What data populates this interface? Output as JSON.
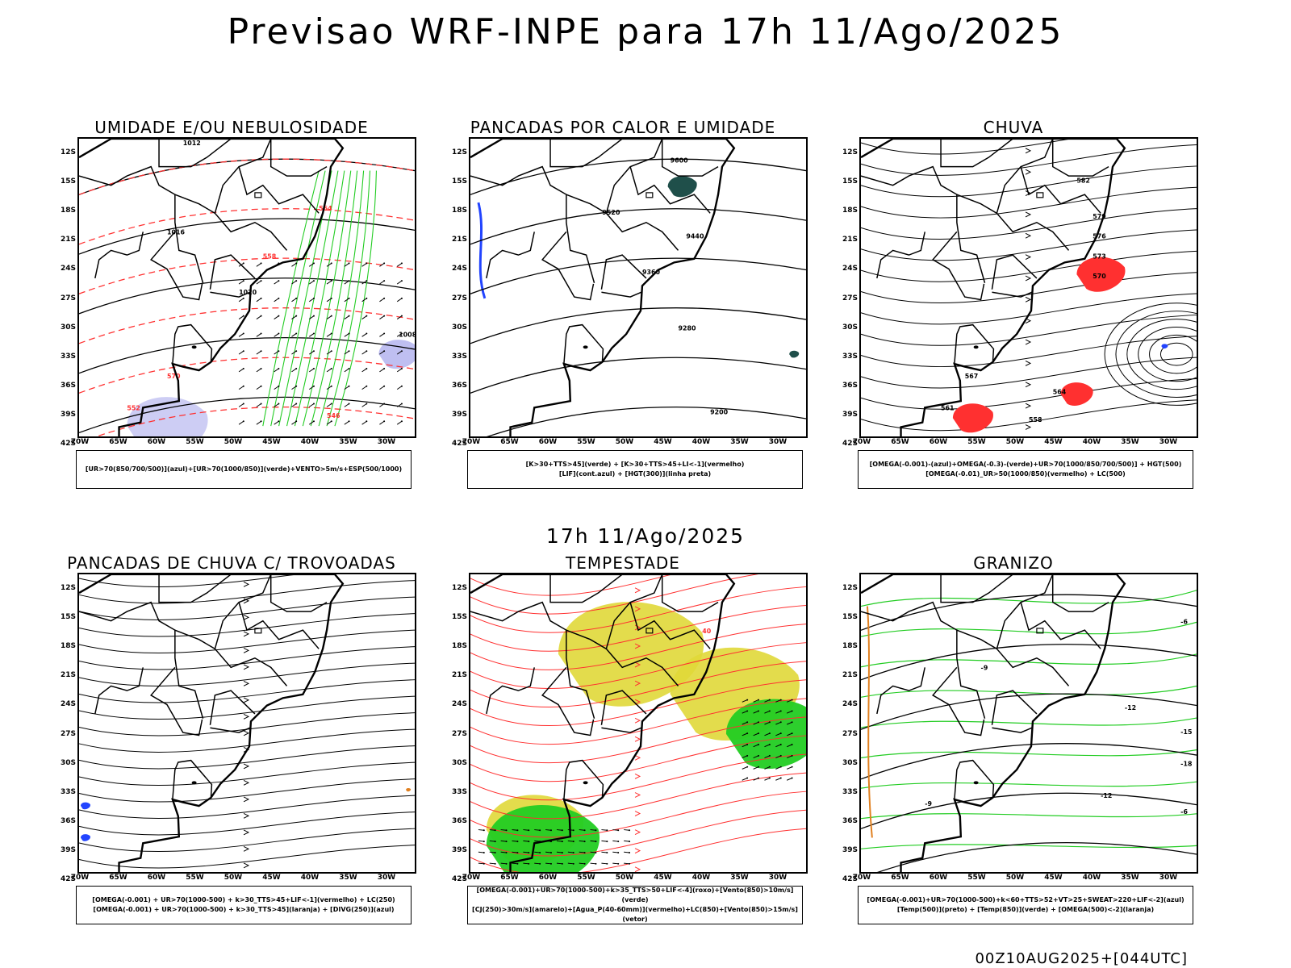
{
  "main_title": "Previsao WRF-INPE  para 17h 11/Ago/2025",
  "mid_title": "17h 11/Ago/2025",
  "footer": "00Z10AUG2025+[044UTC]",
  "axes": {
    "lat_labels": [
      "12S",
      "15S",
      "18S",
      "21S",
      "24S",
      "27S",
      "30S",
      "33S",
      "36S",
      "39S",
      "42S"
    ],
    "lon_labels": [
      "70W",
      "65W",
      "60W",
      "55W",
      "50W",
      "45W",
      "40W",
      "35W",
      "30W"
    ]
  },
  "panels": [
    {
      "title": "UMIDADE E/OU NEBULOSIDADE",
      "legend": [
        "[UR>70(850/700/500)](azul)+[UR>70(1000/850)](verde)+VENTO>5m/s+ESP(500/1000)"
      ],
      "contour_labels": [
        "1012",
        "1016",
        "1020",
        "1008",
        "570",
        "564",
        "558",
        "552",
        "546"
      ]
    },
    {
      "title": "PANCADAS POR CALOR E UMIDADE",
      "legend": [
        "[K>30+TTS>45](verde) + [K>30+TTS>45+LI<-1](vermelho)",
        "[LIF](cont.azul) + [HGT(300)](linha preta)"
      ],
      "contour_labels": [
        "9600",
        "9520",
        "9440",
        "9360",
        "9280",
        "9200"
      ]
    },
    {
      "title": "CHUVA",
      "legend": [
        "[OMEGA(-0.001)-(azul)+OMEGA(-0.3)-(verde)+UR>70(1000/850/700/500)] + HGT(500)",
        "[OMEGA(-0.01)_UR>50(1000/850)(vermelho) + LC(500)"
      ],
      "contour_labels": [
        "582",
        "579",
        "576",
        "573",
        "570",
        "567",
        "564",
        "561",
        "558"
      ]
    },
    {
      "title": "PANCADAS DE CHUVA C/ TROVOADAS",
      "legend": [
        "[OMEGA(-0.001) + UR>70(1000-500) + k>30_TTS>45+LIF<-1](vermelho) + LC(250)",
        "[OMEGA(-0.001) + UR>70(1000-500) + k>30_TTS>45](laranja) + [DIVG(250)](azul)"
      ],
      "contour_labels": []
    },
    {
      "title": "TEMPESTADE",
      "legend": [
        "[OMEGA(-0.001)+UR>70(1000-500)+k>35_TTS>50+LIF<-4](roxo)+[Vento(850)>10m/s](verde)",
        "[CJ(250)>30m/s](amarelo)+[Agua_P(40-60mm)](vermelho)+LC(850)+[Vento(850)>15m/s](vetor)"
      ],
      "contour_labels": [
        "40"
      ]
    },
    {
      "title": "GRANIZO",
      "legend": [
        "[OMEGA(-0.001)+UR>70(1000-500)+k<60+TTS>52+VT>25+SWEAT>220+LIF<-2](azul)",
        "[Temp(500)](preto) + [Temp(850)](verde) + [OMEGA(500)<-2](laranja)"
      ],
      "contour_labels": [
        "-6",
        "-9",
        "-12",
        "-15",
        "-18"
      ]
    }
  ],
  "colors": {
    "black": "#000000",
    "red": "#ff3030",
    "green": "#22cc22",
    "blue": "#2244ff",
    "lavender": "#b8b8f0",
    "yellow": "#e0d838",
    "dark_teal": "#1f4f4a",
    "orange": "#e08020"
  }
}
